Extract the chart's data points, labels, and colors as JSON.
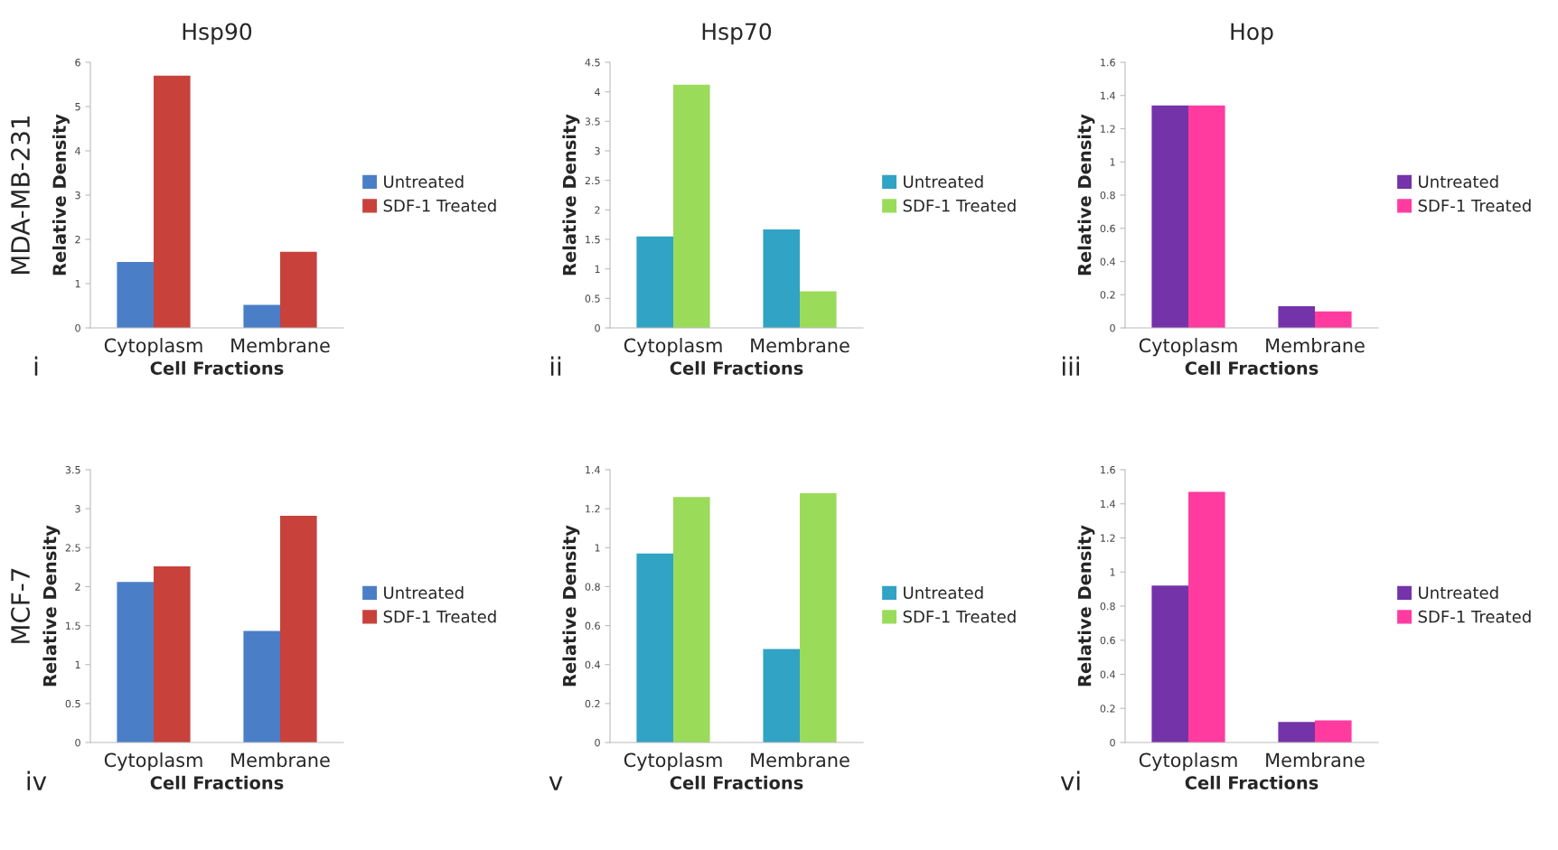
{
  "chart_data": [
    {
      "type": "bar",
      "title": "Hsp90",
      "xlabel": "Cell Fractions",
      "ylabel": "Relative Density",
      "categories": [
        "Cytoplasm",
        "Membrane"
      ],
      "ylim": [
        0,
        6
      ],
      "yticks": [
        0,
        1,
        2,
        3,
        4,
        5,
        6
      ],
      "legend": "right",
      "annotations": [
        "MDA-MB-231",
        "i"
      ],
      "series": [
        {
          "name": "Untreated",
          "color": "#4a7fc8",
          "values": [
            1.49,
            0.52
          ]
        },
        {
          "name": "SDF-1 Treated",
          "color": "#c9413b",
          "values": [
            5.7,
            1.72
          ]
        }
      ]
    },
    {
      "type": "bar",
      "title": "Hsp70",
      "xlabel": "Cell Fractions",
      "ylabel": "Relative Density",
      "categories": [
        "Cytoplasm",
        "Membrane"
      ],
      "ylim": [
        0,
        4.5
      ],
      "yticks": [
        0,
        0.5,
        1,
        1.5,
        2,
        2.5,
        3,
        3.5,
        4,
        4.5
      ],
      "legend": "right",
      "annotations": [
        "ii"
      ],
      "series": [
        {
          "name": "Untreated",
          "color": "#31a3c4",
          "values": [
            1.55,
            1.67
          ]
        },
        {
          "name": "SDF-1 Treated",
          "color": "#9bdb5a",
          "values": [
            4.12,
            0.62
          ]
        }
      ]
    },
    {
      "type": "bar",
      "title": "Hop",
      "xlabel": "Cell Fractions",
      "ylabel": "Relative Density",
      "categories": [
        "Cytoplasm",
        "Membrane"
      ],
      "ylim": [
        0,
        1.6
      ],
      "yticks": [
        0,
        0.2,
        0.4,
        0.6,
        0.8,
        1,
        1.2,
        1.4,
        1.6
      ],
      "legend": "right",
      "annotations": [
        "iii"
      ],
      "series": [
        {
          "name": "Untreated",
          "color": "#7433a8",
          "values": [
            1.34,
            0.13
          ]
        },
        {
          "name": "SDF-1 Treated",
          "color": "#ff3ba0",
          "values": [
            1.34,
            0.1
          ]
        }
      ]
    },
    {
      "type": "bar",
      "xlabel": "Cell Fractions",
      "ylabel": "Relative Density",
      "categories": [
        "Cytoplasm",
        "Membrane"
      ],
      "ylim": [
        0,
        3.5
      ],
      "yticks": [
        0,
        0.5,
        1,
        1.5,
        2,
        2.5,
        3,
        3.5
      ],
      "legend": "right",
      "annotations": [
        "MCF-7",
        "iv"
      ],
      "series": [
        {
          "name": "Untreated",
          "color": "#4a7fc8",
          "values": [
            2.06,
            1.43
          ]
        },
        {
          "name": "SDF-1 Treated",
          "color": "#c9413b",
          "values": [
            2.26,
            2.91
          ]
        }
      ]
    },
    {
      "type": "bar",
      "xlabel": "Cell Fractions",
      "ylabel": "Relative Density",
      "categories": [
        "Cytoplasm",
        "Membrane"
      ],
      "ylim": [
        0,
        1.4
      ],
      "yticks": [
        0,
        0.2,
        0.4,
        0.6,
        0.8,
        1,
        1.2,
        1.4
      ],
      "legend": "right",
      "annotations": [
        "v"
      ],
      "series": [
        {
          "name": "Untreated",
          "color": "#31a3c4",
          "values": [
            0.97,
            0.48
          ]
        },
        {
          "name": "SDF-1 Treated",
          "color": "#9bdb5a",
          "values": [
            1.26,
            1.28
          ]
        }
      ]
    },
    {
      "type": "bar",
      "xlabel": "Cell Fractions",
      "ylabel": "Relative Density",
      "categories": [
        "Cytoplasm",
        "Membrane"
      ],
      "ylim": [
        0,
        1.6
      ],
      "yticks": [
        0,
        0.2,
        0.4,
        0.6,
        0.8,
        1,
        1.2,
        1.4,
        1.6
      ],
      "legend": "right",
      "annotations": [
        "vi"
      ],
      "series": [
        {
          "name": "Untreated",
          "color": "#7433a8",
          "values": [
            0.92,
            0.12
          ]
        },
        {
          "name": "SDF-1 Treated",
          "color": "#ff3ba0",
          "values": [
            1.47,
            0.13
          ]
        }
      ]
    }
  ]
}
